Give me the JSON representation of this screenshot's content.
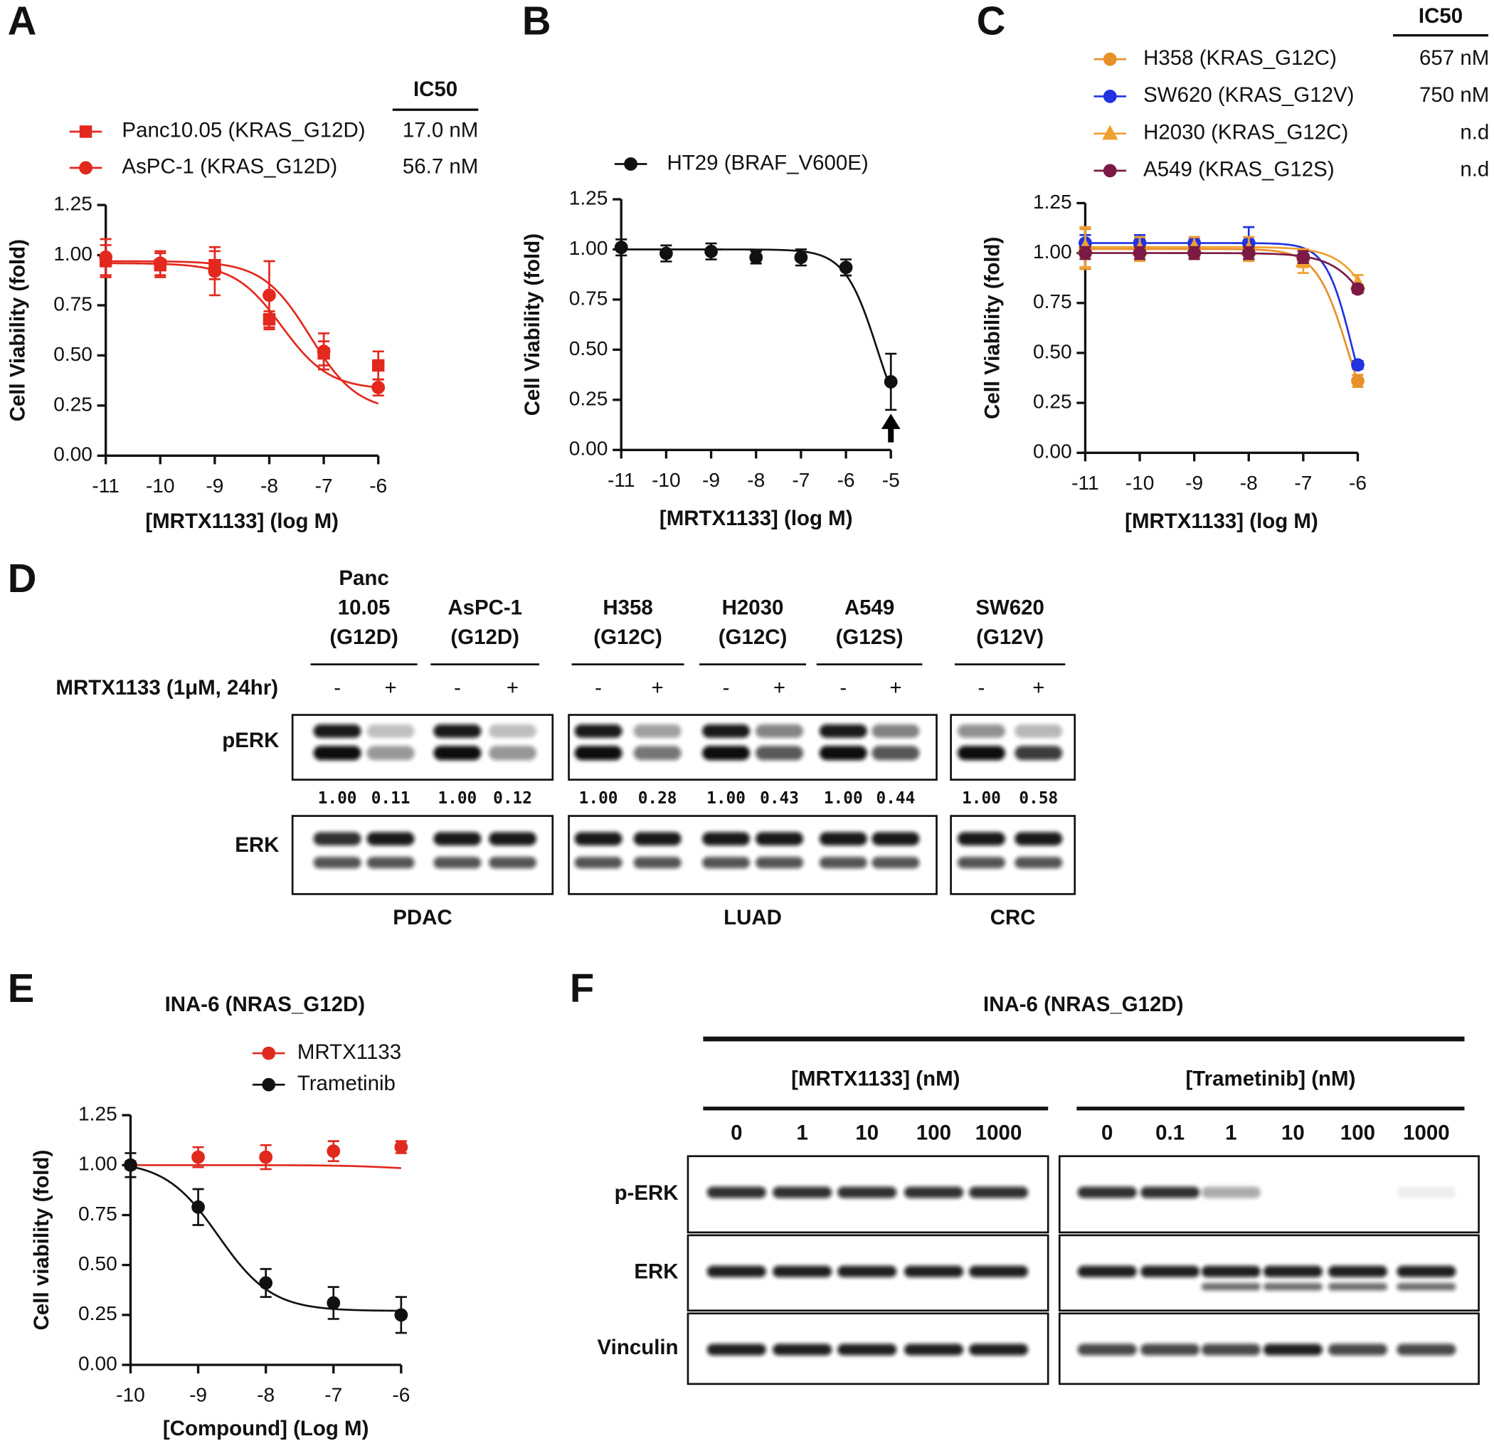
{
  "chart_data": [
    {
      "panel": "A",
      "type": "line",
      "xlabel": "[MRTX1133] (log M)",
      "ylabel": "Cell Viability (fold)",
      "xlim": [
        -11,
        -6
      ],
      "xticks": [
        -11,
        -10,
        -9,
        -8,
        -7,
        -6
      ],
      "ylim": [
        0,
        1.25
      ],
      "yticks": [
        {
          "value": 0,
          "label": "0.00"
        },
        {
          "value": 0.25,
          "label": "0.25"
        },
        {
          "value": 0.5,
          "label": "0.50"
        },
        {
          "value": 0.75,
          "label": "0.75"
        },
        {
          "value": 1,
          "label": "1.00"
        },
        {
          "value": 1.25,
          "label": "1.25"
        }
      ],
      "ic50_title": "IC50",
      "x": [
        -11,
        -10,
        -9,
        -8,
        -7,
        -6
      ],
      "series": [
        {
          "name": "Panc10.05 (KRAS_G12D)",
          "color": "#e3281e",
          "marker": "square",
          "ic50": "17.0 nM",
          "values": [
            0.97,
            0.95,
            0.95,
            0.68,
            0.51,
            0.45
          ],
          "errors": [
            0.08,
            0.06,
            0.07,
            0.04,
            0.06,
            0.07
          ],
          "fit": {
            "top": 0.96,
            "bottom": 0.33,
            "log_ec50": -7.77,
            "hill": 1
          }
        },
        {
          "name": "AsPC-1 (KRAS_G12D)",
          "color": "#e3281e",
          "marker": "circle",
          "ic50": "56.7 nM",
          "values": [
            0.99,
            0.96,
            0.92,
            0.8,
            0.52,
            0.34
          ],
          "errors": [
            0.09,
            0.06,
            0.12,
            0.17,
            0.09,
            0.04
          ],
          "fit": {
            "top": 0.97,
            "bottom": 0.22,
            "log_ec50": -7.25,
            "hill": 1
          }
        }
      ]
    },
    {
      "panel": "B",
      "type": "line",
      "xlabel": "[MRTX1133] (log M)",
      "ylabel": "Cell Viability (fold)",
      "xlim": [
        -11,
        -5
      ],
      "xticks": [
        -11,
        -10,
        -9,
        -8,
        -7,
        -6,
        -5
      ],
      "ylim": [
        0,
        1.25
      ],
      "yticks": [
        {
          "value": 0,
          "label": "0.00"
        },
        {
          "value": 0.25,
          "label": "0.25"
        },
        {
          "value": 0.5,
          "label": "0.50"
        },
        {
          "value": 0.75,
          "label": "0.75"
        },
        {
          "value": 1,
          "label": "1.00"
        },
        {
          "value": 1.25,
          "label": "1.25"
        }
      ],
      "x": [
        -11,
        -10,
        -9,
        -8,
        -7,
        -6,
        -5
      ],
      "series": [
        {
          "name": "HT29 (BRAF_V600E)",
          "color": "#111111",
          "marker": "circle",
          "values": [
            1.01,
            0.98,
            0.99,
            0.96,
            0.96,
            0.91,
            0.34
          ],
          "errors": [
            0.04,
            0.04,
            0.04,
            0.03,
            0.04,
            0.04,
            0.14
          ],
          "fit": {
            "top": 1.0,
            "bottom": 0,
            "log_ec50": -5.3,
            "hill": 1.2
          }
        }
      ]
    },
    {
      "panel": "C",
      "type": "line",
      "xlabel": "[MRTX1133] (log M)",
      "ylabel": "Cell Viability (fold)",
      "xlim": [
        -11,
        -6
      ],
      "xticks": [
        -11,
        -10,
        -9,
        -8,
        -7,
        -6
      ],
      "ylim": [
        0,
        1.25
      ],
      "yticks": [
        {
          "value": 0,
          "label": "0.00"
        },
        {
          "value": 0.25,
          "label": "0.25"
        },
        {
          "value": 0.5,
          "label": "0.50"
        },
        {
          "value": 0.75,
          "label": "0.75"
        },
        {
          "value": 1,
          "label": "1.00"
        },
        {
          "value": 1.25,
          "label": "1.25"
        }
      ],
      "ic50_title": "IC50",
      "x": [
        -11,
        -10,
        -9,
        -8,
        -7,
        -6
      ],
      "series": [
        {
          "name": "H358 (KRAS_G12C)",
          "color": "#e8902a",
          "marker": "circle",
          "ic50": "657 nM",
          "values": [
            1.02,
            1.02,
            1.02,
            1.02,
            0.97,
            0.36
          ],
          "errors": [
            0.1,
            0.05,
            0.05,
            0.06,
            0.04,
            0.03
          ],
          "fit": {
            "top": 1.02,
            "bottom": 0,
            "log_ec50": -6.18,
            "hill": 1.5
          }
        },
        {
          "name": "SW620 (KRAS_G12V)",
          "color": "#2233e0",
          "marker": "circle",
          "ic50": "750 nM",
          "values": [
            1.05,
            1.05,
            1.05,
            1.05,
            0.98,
            0.44
          ],
          "errors": [
            0.04,
            0.04,
            0.03,
            0.08,
            0.03,
            0.02
          ],
          "fit": {
            "top": 1.05,
            "bottom": 0,
            "log_ec50": -6.1,
            "hill": 1.8
          }
        },
        {
          "name": "H2030 (KRAS_G12C)",
          "color": "#f0a030",
          "marker": "triangle",
          "ic50": "n.d",
          "values": [
            1.03,
            1.02,
            1.03,
            1.02,
            0.96,
            0.85
          ],
          "errors": [
            0.1,
            0.06,
            0.05,
            0.06,
            0.06,
            0.04
          ],
          "fit": {
            "top": 1.03,
            "bottom": 0,
            "log_ec50": -5.4,
            "hill": 1.2
          }
        },
        {
          "name": "A549 (KRAS_G12S)",
          "color": "#7a1a45",
          "marker": "circle",
          "ic50": "n.d",
          "values": [
            1.0,
            1.0,
            1.0,
            1.0,
            0.98,
            0.82
          ],
          "errors": [
            0.03,
            0.03,
            0.03,
            0.03,
            0.03,
            0.02
          ],
          "fit": {
            "top": 1.0,
            "bottom": 0,
            "log_ec50": -5.4,
            "hill": 1.1
          }
        }
      ]
    },
    {
      "panel": "E",
      "type": "line",
      "title": "INA-6 (NRAS_G12D)",
      "xlabel": "[Compound] (Log M)",
      "ylabel": "Cell viability (fold)",
      "xlim": [
        -10,
        -6
      ],
      "xticks": [
        -10,
        -9,
        -8,
        -7,
        -6
      ],
      "ylim": [
        0,
        1.25
      ],
      "yticks": [
        {
          "value": 0,
          "label": "0.00"
        },
        {
          "value": 0.25,
          "label": "0.25"
        },
        {
          "value": 0.5,
          "label": "0.50"
        },
        {
          "value": 0.75,
          "label": "0.75"
        },
        {
          "value": 1,
          "label": "1.00"
        },
        {
          "value": 1.25,
          "label": "1.25"
        }
      ],
      "x": [
        -10,
        -9,
        -8,
        -7,
        -6
      ],
      "series": [
        {
          "name": "MRTX1133",
          "color": "#e02a20",
          "marker": "circle",
          "values": [
            1.0,
            1.04,
            1.04,
            1.07,
            1.09
          ],
          "errors": [
            0.02,
            0.05,
            0.06,
            0.05,
            0.03
          ],
          "fit": {
            "top": 1.0,
            "bottom": 0.97,
            "log_ec50": -6,
            "hill": 1
          }
        },
        {
          "name": "Trametinib",
          "color": "#111111",
          "marker": "circle",
          "values": [
            1.0,
            0.79,
            0.41,
            0.31,
            0.25
          ],
          "errors": [
            0.06,
            0.09,
            0.07,
            0.08,
            0.09
          ],
          "fit": {
            "top": 1.02,
            "bottom": 0.27,
            "log_ec50": -8.7,
            "hill": 1.1
          }
        }
      ]
    }
  ],
  "blot_d": {
    "panel": "D",
    "treatment": "MRTX1133 (1μM, 24hr)",
    "groups": [
      {
        "label": [
          "Panc",
          "10.05",
          "(G12D)"
        ],
        "signs": [
          "-",
          "+"
        ],
        "quant": [
          "1.00",
          "0.11"
        ]
      },
      {
        "label": [
          "AsPC-1",
          "(G12D)"
        ],
        "signs": [
          "-",
          "+"
        ],
        "quant": [
          "1.00",
          "0.12"
        ]
      },
      {
        "label": [
          "H358",
          "(G12C)"
        ],
        "signs": [
          "-",
          "+"
        ],
        "quant": [
          "1.00",
          "0.28"
        ]
      },
      {
        "label": [
          "H2030",
          "(G12C)"
        ],
        "signs": [
          "-",
          "+"
        ],
        "quant": [
          "1.00",
          "0.43"
        ]
      },
      {
        "label": [
          "A549",
          "(G12S)"
        ],
        "signs": [
          "-",
          "+"
        ],
        "quant": [
          "1.00",
          "0.44"
        ]
      },
      {
        "label": [
          "SW620",
          "(G12V)"
        ],
        "signs": [
          "-",
          "+"
        ],
        "quant": [
          "1.00",
          "0.58"
        ]
      }
    ],
    "rows": [
      "pERK",
      "ERK"
    ],
    "tissues": [
      "PDAC",
      "LUAD",
      "CRC"
    ]
  },
  "blot_f": {
    "panel": "F",
    "title": "INA-6 (NRAS_G12D)",
    "groups": [
      {
        "label": "[MRTX1133] (nM)",
        "doses": [
          "0",
          "1",
          "10",
          "100",
          "1000"
        ]
      },
      {
        "label": "[Trametinib] (nM)",
        "doses": [
          "0",
          "0.1",
          "1",
          "10",
          "100",
          "1000"
        ]
      }
    ],
    "rows": [
      "p-ERK",
      "ERK",
      "Vinculin"
    ]
  }
}
